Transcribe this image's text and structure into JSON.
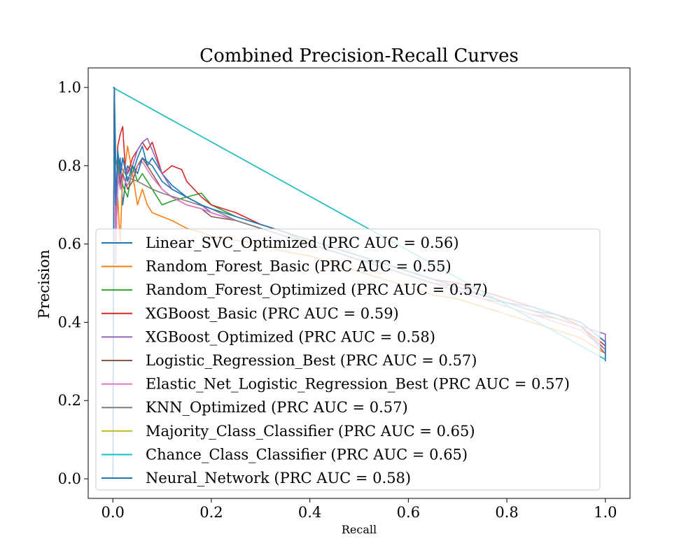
{
  "chart_data": {
    "type": "line",
    "title": "Combined Precision-Recall Curves",
    "xlabel": "Recall",
    "ylabel": "Precision",
    "xlim": [
      -0.05,
      1.05
    ],
    "ylim": [
      -0.05,
      1.05
    ],
    "xticks": [
      0.0,
      0.2,
      0.4,
      0.6,
      0.8,
      1.0
    ],
    "xtick_labels": [
      "0.0",
      "0.2",
      "0.4",
      "0.6",
      "0.8",
      "1.0"
    ],
    "yticks": [
      0.0,
      0.2,
      0.4,
      0.6,
      0.8,
      1.0
    ],
    "ytick_labels": [
      "0.0",
      "0.2",
      "0.4",
      "0.6",
      "0.8",
      "1.0"
    ],
    "grid": false,
    "legend_position": "lower-left",
    "series": [
      {
        "name": "Linear_SVC_Optimized (PRC AUC = 0.56)",
        "color": "#1f77b4",
        "x": [
          0,
          0.003,
          0.006,
          0.01,
          0.015,
          0.02,
          0.03,
          0.04,
          0.05,
          0.06,
          0.07,
          0.08,
          0.1,
          0.12,
          0.15,
          0.18,
          0.2,
          0.25,
          0.3,
          0.35,
          0.4,
          0.45,
          0.5,
          0.55,
          0.6,
          0.65,
          0.7,
          0.75,
          0.8,
          0.85,
          0.9,
          0.95,
          0.98,
          1.0,
          1.0
        ],
        "y": [
          0,
          1.0,
          0.6,
          0.75,
          0.82,
          0.7,
          0.8,
          0.78,
          0.82,
          0.85,
          0.8,
          0.82,
          0.78,
          0.75,
          0.72,
          0.7,
          0.68,
          0.66,
          0.64,
          0.62,
          0.6,
          0.58,
          0.56,
          0.55,
          0.53,
          0.51,
          0.49,
          0.47,
          0.45,
          0.43,
          0.42,
          0.4,
          0.37,
          0.35,
          0.31
        ]
      },
      {
        "name": "Random_Forest_Basic (PRC AUC = 0.55)",
        "color": "#ff7f0e",
        "x": [
          0,
          0.003,
          0.006,
          0.01,
          0.015,
          0.02,
          0.025,
          0.03,
          0.04,
          0.05,
          0.06,
          0.07,
          0.08,
          0.1,
          0.12,
          0.15,
          0.18,
          0.2,
          0.25,
          0.3,
          0.35,
          0.4,
          0.45,
          0.5,
          0.55,
          0.6,
          0.65,
          0.7,
          0.75,
          0.8,
          0.85,
          0.9,
          0.95,
          1.0
        ],
        "y": [
          0,
          1.0,
          0.62,
          0.72,
          0.6,
          0.78,
          0.8,
          0.85,
          0.78,
          0.7,
          0.74,
          0.7,
          0.68,
          0.67,
          0.66,
          0.64,
          0.63,
          0.62,
          0.61,
          0.6,
          0.58,
          0.57,
          0.55,
          0.53,
          0.51,
          0.49,
          0.47,
          0.46,
          0.44,
          0.42,
          0.4,
          0.38,
          0.36,
          0.32
        ]
      },
      {
        "name": "Random_Forest_Optimized (PRC AUC = 0.57)",
        "color": "#2ca02c",
        "x": [
          0,
          0.003,
          0.006,
          0.01,
          0.015,
          0.02,
          0.03,
          0.04,
          0.05,
          0.06,
          0.08,
          0.1,
          0.12,
          0.15,
          0.18,
          0.2,
          0.25,
          0.3,
          0.35,
          0.4,
          0.45,
          0.5,
          0.55,
          0.6,
          0.65,
          0.7,
          0.75,
          0.8,
          0.85,
          0.9,
          0.95,
          1.0
        ],
        "y": [
          0,
          1.0,
          0.7,
          0.82,
          0.78,
          0.75,
          0.72,
          0.8,
          0.76,
          0.78,
          0.74,
          0.7,
          0.71,
          0.72,
          0.73,
          0.7,
          0.67,
          0.65,
          0.63,
          0.6,
          0.58,
          0.56,
          0.54,
          0.52,
          0.5,
          0.48,
          0.46,
          0.45,
          0.43,
          0.41,
          0.39,
          0.33
        ]
      },
      {
        "name": "XGBoost_Basic (PRC AUC = 0.59)",
        "color": "#d62728",
        "x": [
          0,
          0.003,
          0.006,
          0.01,
          0.015,
          0.02,
          0.025,
          0.03,
          0.04,
          0.05,
          0.06,
          0.07,
          0.08,
          0.09,
          0.1,
          0.12,
          0.14,
          0.15,
          0.18,
          0.2,
          0.25,
          0.3,
          0.35,
          0.4,
          0.45,
          0.5,
          0.55,
          0.6,
          0.65,
          0.7,
          0.75,
          0.8,
          0.85,
          0.9,
          0.95,
          1.0
        ],
        "y": [
          0,
          1.0,
          0.65,
          0.85,
          0.88,
          0.9,
          0.8,
          0.78,
          0.82,
          0.84,
          0.86,
          0.84,
          0.86,
          0.82,
          0.78,
          0.8,
          0.79,
          0.76,
          0.72,
          0.7,
          0.68,
          0.65,
          0.63,
          0.61,
          0.59,
          0.57,
          0.55,
          0.53,
          0.51,
          0.5,
          0.48,
          0.46,
          0.44,
          0.42,
          0.39,
          0.34
        ]
      },
      {
        "name": "XGBoost_Optimized (PRC AUC = 0.58)",
        "color": "#9467bd",
        "x": [
          0,
          0.003,
          0.006,
          0.01,
          0.015,
          0.02,
          0.03,
          0.04,
          0.05,
          0.06,
          0.07,
          0.08,
          0.1,
          0.12,
          0.15,
          0.18,
          0.2,
          0.25,
          0.3,
          0.35,
          0.4,
          0.45,
          0.5,
          0.55,
          0.6,
          0.65,
          0.7,
          0.75,
          0.8,
          0.85,
          0.9,
          0.95,
          1.0,
          1.0
        ],
        "y": [
          0,
          1.0,
          0.55,
          0.8,
          0.76,
          0.82,
          0.78,
          0.8,
          0.84,
          0.86,
          0.87,
          0.84,
          0.78,
          0.74,
          0.72,
          0.7,
          0.68,
          0.66,
          0.64,
          0.62,
          0.6,
          0.58,
          0.56,
          0.54,
          0.52,
          0.5,
          0.48,
          0.47,
          0.45,
          0.43,
          0.41,
          0.39,
          0.37,
          0.32
        ]
      },
      {
        "name": "Logistic_Regression_Best (PRC AUC = 0.57)",
        "color": "#8c564b",
        "x": [
          0,
          0.003,
          0.006,
          0.01,
          0.015,
          0.02,
          0.03,
          0.04,
          0.05,
          0.06,
          0.08,
          0.1,
          0.12,
          0.15,
          0.18,
          0.2,
          0.25,
          0.3,
          0.35,
          0.4,
          0.45,
          0.5,
          0.55,
          0.6,
          0.65,
          0.7,
          0.75,
          0.8,
          0.85,
          0.9,
          0.95,
          1.0
        ],
        "y": [
          0,
          1.0,
          0.6,
          0.8,
          0.75,
          0.78,
          0.74,
          0.76,
          0.8,
          0.82,
          0.78,
          0.74,
          0.72,
          0.7,
          0.69,
          0.67,
          0.66,
          0.64,
          0.62,
          0.6,
          0.58,
          0.56,
          0.54,
          0.52,
          0.5,
          0.48,
          0.46,
          0.44,
          0.42,
          0.41,
          0.39,
          0.33
        ]
      },
      {
        "name": "Elastic_Net_Logistic_Regression_Best (PRC AUC = 0.57)",
        "color": "#e377c2",
        "x": [
          0,
          0.003,
          0.006,
          0.01,
          0.015,
          0.02,
          0.03,
          0.04,
          0.05,
          0.06,
          0.08,
          0.1,
          0.12,
          0.15,
          0.18,
          0.2,
          0.25,
          0.3,
          0.35,
          0.4,
          0.45,
          0.5,
          0.55,
          0.6,
          0.65,
          0.7,
          0.75,
          0.8,
          0.85,
          0.9,
          0.95,
          1.0
        ],
        "y": [
          0,
          1.0,
          0.58,
          0.78,
          0.74,
          0.77,
          0.75,
          0.78,
          0.8,
          0.81,
          0.77,
          0.74,
          0.72,
          0.7,
          0.69,
          0.68,
          0.66,
          0.64,
          0.62,
          0.6,
          0.58,
          0.56,
          0.54,
          0.52,
          0.5,
          0.48,
          0.46,
          0.44,
          0.42,
          0.4,
          0.38,
          0.33
        ]
      },
      {
        "name": "KNN_Optimized (PRC AUC = 0.57)",
        "color": "#7f7f7f",
        "x": [
          0,
          0.003,
          0.006,
          0.01,
          0.015,
          0.02,
          0.03,
          0.05,
          0.08,
          0.1,
          0.15,
          0.2,
          0.25,
          0.3,
          0.35,
          0.4,
          0.45,
          0.5,
          0.55,
          0.6,
          0.65,
          0.7,
          0.75,
          0.8,
          0.85,
          0.9,
          0.95,
          1.0
        ],
        "y": [
          0,
          1.0,
          0.82,
          0.78,
          0.8,
          0.79,
          0.77,
          0.76,
          0.74,
          0.73,
          0.71,
          0.69,
          0.66,
          0.64,
          0.62,
          0.6,
          0.58,
          0.56,
          0.54,
          0.52,
          0.5,
          0.49,
          0.47,
          0.45,
          0.43,
          0.41,
          0.39,
          0.32
        ]
      },
      {
        "name": "Majority_Class_Classifier (PRC AUC = 0.65)",
        "color": "#bcbd22",
        "x": [
          0,
          1.0
        ],
        "y": [
          1.0,
          0.305
        ]
      },
      {
        "name": "Chance_Class_Classifier (PRC AUC = 0.65)",
        "color": "#17becf",
        "x": [
          0,
          1.0
        ],
        "y": [
          1.0,
          0.305
        ]
      },
      {
        "name": "Neural_Network (PRC AUC = 0.58)",
        "color": "#1f77b4",
        "x": [
          0,
          0.003,
          0.006,
          0.01,
          0.015,
          0.02,
          0.03,
          0.04,
          0.05,
          0.06,
          0.08,
          0.1,
          0.12,
          0.15,
          0.18,
          0.2,
          0.25,
          0.3,
          0.35,
          0.4,
          0.45,
          0.5,
          0.55,
          0.6,
          0.65,
          0.7,
          0.75,
          0.8,
          0.85,
          0.9,
          0.95,
          1.0,
          1.0
        ],
        "y": [
          0,
          1.0,
          0.7,
          0.84,
          0.78,
          0.82,
          0.76,
          0.8,
          0.78,
          0.82,
          0.8,
          0.76,
          0.74,
          0.72,
          0.7,
          0.69,
          0.67,
          0.65,
          0.63,
          0.61,
          0.59,
          0.57,
          0.55,
          0.53,
          0.51,
          0.49,
          0.47,
          0.45,
          0.44,
          0.42,
          0.4,
          0.35,
          0.3
        ]
      }
    ]
  }
}
